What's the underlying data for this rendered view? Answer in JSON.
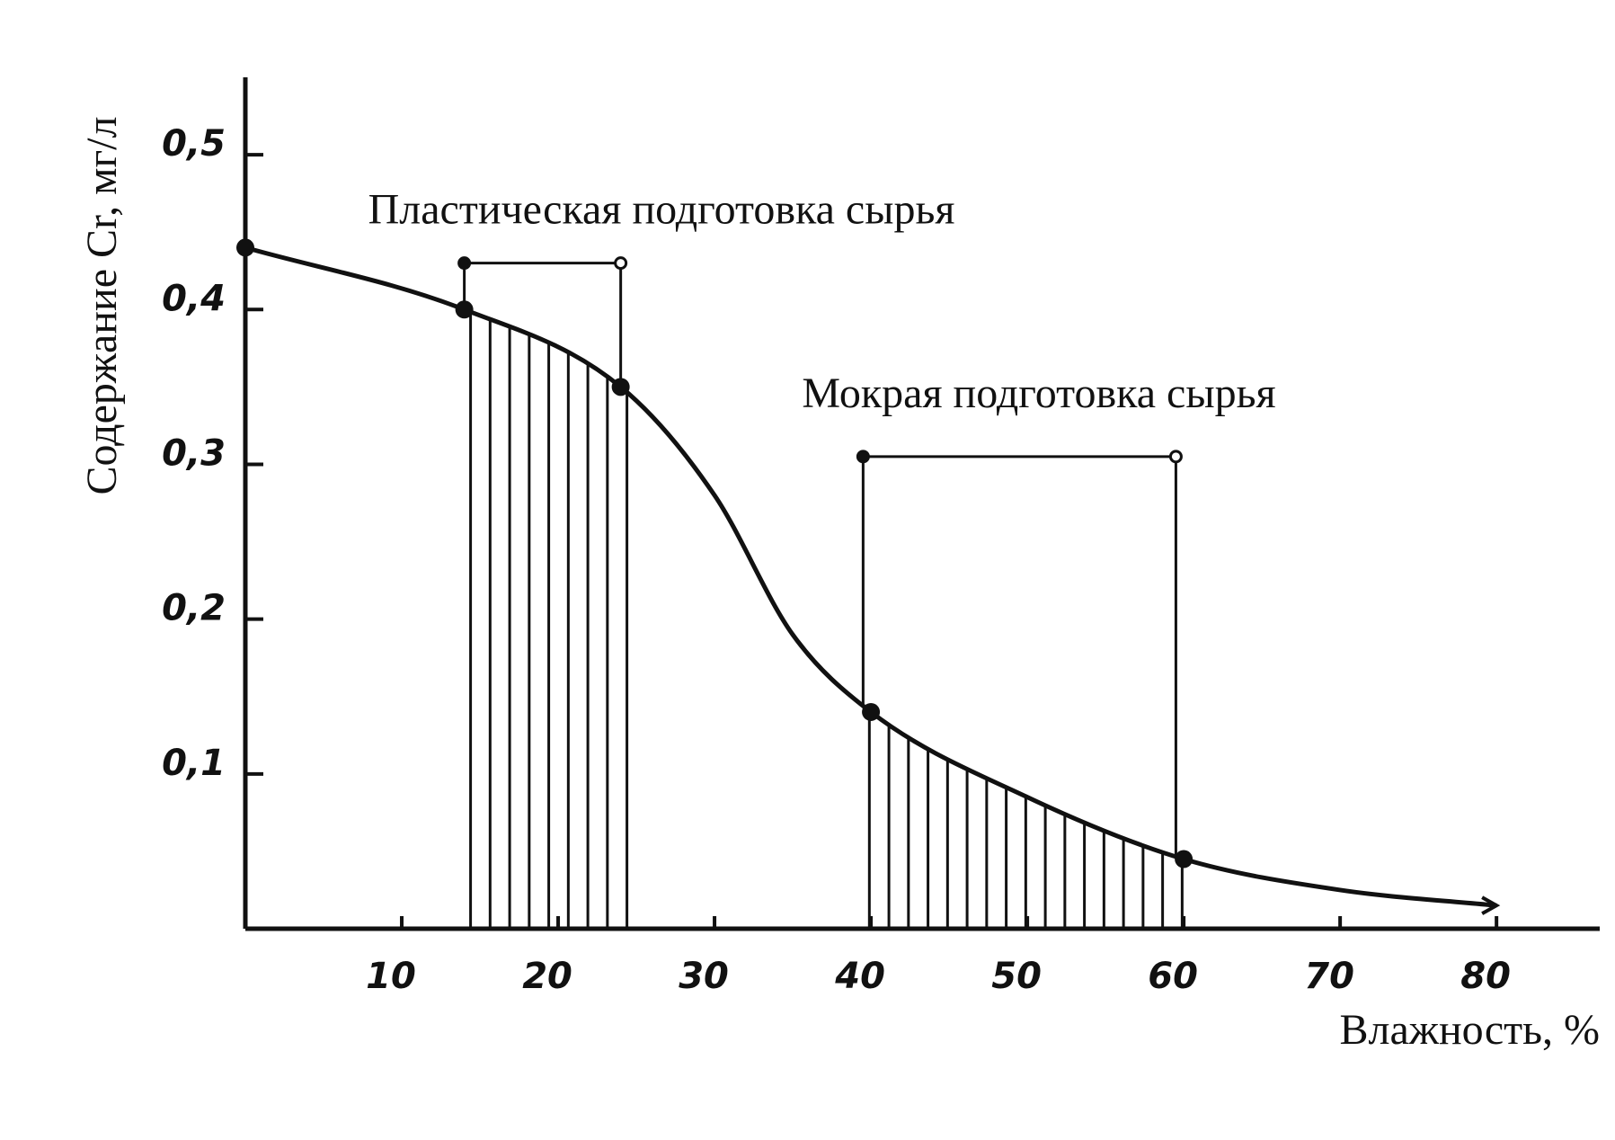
{
  "chart_data": {
    "type": "line",
    "x_label": "Влажность, %",
    "y_label": "Содержание Cr, мг/л",
    "x": [
      0,
      14,
      24,
      30,
      35,
      40,
      50,
      60,
      70,
      80
    ],
    "values": [
      0.44,
      0.4,
      0.35,
      0.28,
      0.19,
      0.14,
      0.085,
      0.045,
      0.025,
      0.015
    ],
    "color": "#111111",
    "points": {
      "x": [
        0,
        14,
        24,
        40,
        60
      ],
      "values": [
        0.44,
        0.4,
        0.35,
        0.14,
        0.045
      ]
    },
    "ranges": [
      {
        "label": "Пластическая подготовка сырья",
        "x": [
          14,
          24
        ],
        "level": 0.43
      },
      {
        "label": "Мокрая подготовка сырья",
        "x": [
          39.5,
          59.5
        ],
        "level": 0.305
      }
    ],
    "xlim": [
      0,
      86.6
    ],
    "ylim": [
      0,
      0.55
    ],
    "xticks": [
      10,
      20,
      30,
      40,
      50,
      60,
      70,
      80
    ],
    "yticks": [
      {
        "value": 0.1,
        "label": "0,1"
      },
      {
        "value": 0.2,
        "label": "0,2"
      },
      {
        "value": 0.3,
        "label": "0,3"
      },
      {
        "value": 0.4,
        "label": "0,4"
      },
      {
        "value": 0.5,
        "label": "0,5"
      }
    ]
  }
}
